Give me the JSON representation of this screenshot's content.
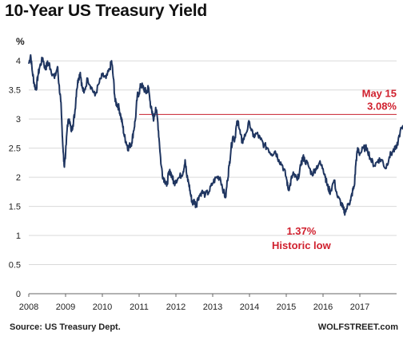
{
  "title": "10-Year US Treasury Yield",
  "source": "Source: US Treasury Dept.",
  "brand": "WOLFSTREET.com",
  "colors": {
    "line": "#1f3560",
    "reference": "#c8202e",
    "annotation": "#d0202e",
    "grid": "#d9d9d9"
  },
  "chart_data": {
    "type": "line",
    "title": "10-Year US Treasury Yield",
    "ylabel": "%",
    "xlabel": "",
    "xlim": [
      2008,
      2018
    ],
    "ylim": [
      0,
      4.25
    ],
    "x_ticks": [
      "2008",
      "2009",
      "2010",
      "2011",
      "2012",
      "2013",
      "2014",
      "2015",
      "2016",
      "2017"
    ],
    "y_ticks": [
      "0",
      "0.5",
      "1",
      "1.5",
      "2",
      "2.5",
      "3",
      "3.5",
      "4"
    ],
    "grid": "horizontal",
    "series": [
      {
        "x": [
          2008.0,
          2008.05,
          2008.1,
          2008.15,
          2008.2,
          2008.25,
          2008.3,
          2008.38,
          2008.45,
          2008.5,
          2008.55,
          2008.6,
          2008.7,
          2008.78,
          2008.82,
          2008.87,
          2008.9,
          2008.93,
          2008.96,
          2009.0,
          2009.05,
          2009.1,
          2009.15,
          2009.2,
          2009.25,
          2009.3,
          2009.35,
          2009.4,
          2009.45,
          2009.5,
          2009.6,
          2009.7,
          2009.8,
          2009.9,
          2010.0,
          2010.1,
          2010.2,
          2010.25,
          2010.3,
          2010.35,
          2010.4,
          2010.45,
          2010.5,
          2010.55,
          2010.6,
          2010.65,
          2010.7,
          2010.75,
          2010.8,
          2010.85,
          2010.9,
          2010.95,
          2011.0,
          2011.05,
          2011.1,
          2011.15,
          2011.2,
          2011.25,
          2011.3,
          2011.35,
          2011.4,
          2011.45,
          2011.5,
          2011.55,
          2011.6,
          2011.65,
          2011.7,
          2011.75,
          2011.8,
          2011.85,
          2011.9,
          2011.95,
          2012.0,
          2012.1,
          2012.2,
          2012.25,
          2012.3,
          2012.35,
          2012.4,
          2012.45,
          2012.5,
          2012.55,
          2012.6,
          2012.7,
          2012.8,
          2012.9,
          2013.0,
          2013.1,
          2013.2,
          2013.3,
          2013.35,
          2013.4,
          2013.45,
          2013.5,
          2013.55,
          2013.6,
          2013.65,
          2013.7,
          2013.75,
          2013.8,
          2013.9,
          2014.0,
          2014.1,
          2014.2,
          2014.3,
          2014.4,
          2014.5,
          2014.6,
          2014.7,
          2014.8,
          2014.9,
          2015.0,
          2015.05,
          2015.1,
          2015.15,
          2015.2,
          2015.3,
          2015.4,
          2015.45,
          2015.5,
          2015.6,
          2015.7,
          2015.8,
          2015.9,
          2016.0,
          2016.05,
          2016.1,
          2016.15,
          2016.2,
          2016.3,
          2016.4,
          2016.5,
          2016.55,
          2016.6,
          2016.7,
          2016.75,
          2016.8,
          2016.85,
          2016.9,
          2016.95,
          2017.0,
          2017.1,
          2017.2,
          2017.3,
          2017.4,
          2017.5,
          2017.6,
          2017.7,
          2017.8,
          2017.9,
          2018.0,
          2018.1,
          2018.2,
          2018.3,
          2018.37
        ],
        "y": [
          3.95,
          4.1,
          3.8,
          3.6,
          3.5,
          3.75,
          3.9,
          4.05,
          3.85,
          3.95,
          3.95,
          3.85,
          3.7,
          3.9,
          3.6,
          3.3,
          2.9,
          2.5,
          2.2,
          2.4,
          2.9,
          3.0,
          2.8,
          2.9,
          3.1,
          3.5,
          3.7,
          3.8,
          3.55,
          3.45,
          3.7,
          3.55,
          3.4,
          3.6,
          3.75,
          3.7,
          3.85,
          4.0,
          3.7,
          3.3,
          3.25,
          3.2,
          3.05,
          2.9,
          2.7,
          2.6,
          2.5,
          2.55,
          2.6,
          2.8,
          3.0,
          3.4,
          3.45,
          3.6,
          3.55,
          3.5,
          3.45,
          3.55,
          3.3,
          3.1,
          3.0,
          3.2,
          3.0,
          2.6,
          2.2,
          2.0,
          1.95,
          1.85,
          2.05,
          2.1,
          2.0,
          1.9,
          1.95,
          2.0,
          2.1,
          2.3,
          2.0,
          1.9,
          1.7,
          1.55,
          1.6,
          1.5,
          1.65,
          1.75,
          1.7,
          1.75,
          1.9,
          2.0,
          2.0,
          1.75,
          1.65,
          1.95,
          2.2,
          2.5,
          2.7,
          2.65,
          2.9,
          2.95,
          2.75,
          2.6,
          2.75,
          2.95,
          2.7,
          2.75,
          2.65,
          2.55,
          2.5,
          2.4,
          2.45,
          2.3,
          2.2,
          2.0,
          1.8,
          1.85,
          2.0,
          2.05,
          1.95,
          2.2,
          2.35,
          2.3,
          2.2,
          2.05,
          2.15,
          2.25,
          2.15,
          2.05,
          1.9,
          1.8,
          1.75,
          1.95,
          1.65,
          1.55,
          1.45,
          1.4,
          1.55,
          1.6,
          1.75,
          1.85,
          2.3,
          2.5,
          2.4,
          2.5,
          2.5,
          2.3,
          2.2,
          2.3,
          2.3,
          2.15,
          2.35,
          2.45,
          2.5,
          2.8,
          2.85,
          2.95,
          3.08
        ]
      }
    ],
    "reference_line": {
      "y": 3.08
    },
    "annotations": [
      {
        "lines": [
          "May 15",
          "3.08%"
        ],
        "x": 2018.0,
        "y": 3.08
      },
      {
        "lines": [
          "1.37%",
          "Historic low"
        ],
        "x": 2016.15,
        "y": 1.37
      }
    ]
  }
}
